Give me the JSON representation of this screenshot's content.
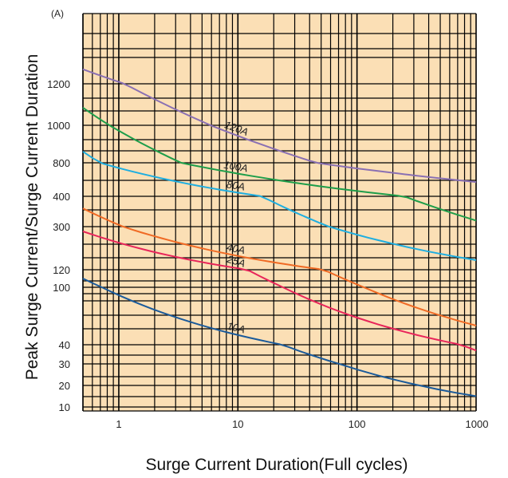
{
  "chart_data": {
    "type": "line",
    "unit_label": "(A)",
    "ylabel": "Peak Surge Current/Surge Current Duration",
    "xlabel": "Surge Current Duration(Full cycles)",
    "x_scale": "log",
    "xlim": [
      0.5,
      1000
    ],
    "x_ticks": [
      1,
      10,
      100,
      1000
    ],
    "x_tick_labels": [
      "1",
      "10",
      "100",
      "1000"
    ],
    "y_ticks": [
      10,
      20,
      30,
      40,
      100,
      120,
      300,
      400,
      800,
      1000,
      1200
    ],
    "y_tick_labels": [
      "10",
      "20",
      "30",
      "40",
      "100",
      "120",
      "300",
      "400",
      "800",
      "1000",
      "1200"
    ],
    "grid": true,
    "background_color": "#fbdfb5",
    "grid_color": "#000000",
    "series": [
      {
        "name": "120A",
        "color": "#8a70b3",
        "x": [
          0.5,
          1000
        ],
        "y": [
          1310,
          570
        ]
      },
      {
        "name": "100A",
        "color": "#1e9e4a",
        "x": [
          0.5,
          1000
        ],
        "y": [
          1085,
          320
        ]
      },
      {
        "name": "80A",
        "color": "#1eaee0",
        "x": [
          0.5,
          1000
        ],
        "y": [
          860,
          160
        ]
      },
      {
        "name": "40A",
        "color": "#f06a24",
        "x": [
          0.5,
          1000
        ],
        "y": [
          360,
          60
        ]
      },
      {
        "name": "25A",
        "color": "#e8255a",
        "x": [
          0.5,
          1000
        ],
        "y": [
          280,
          37
        ]
      },
      {
        "name": "10A",
        "color": "#1a5a9a",
        "x": [
          0.5,
          1000
        ],
        "y": [
          110,
          15
        ]
      }
    ]
  }
}
